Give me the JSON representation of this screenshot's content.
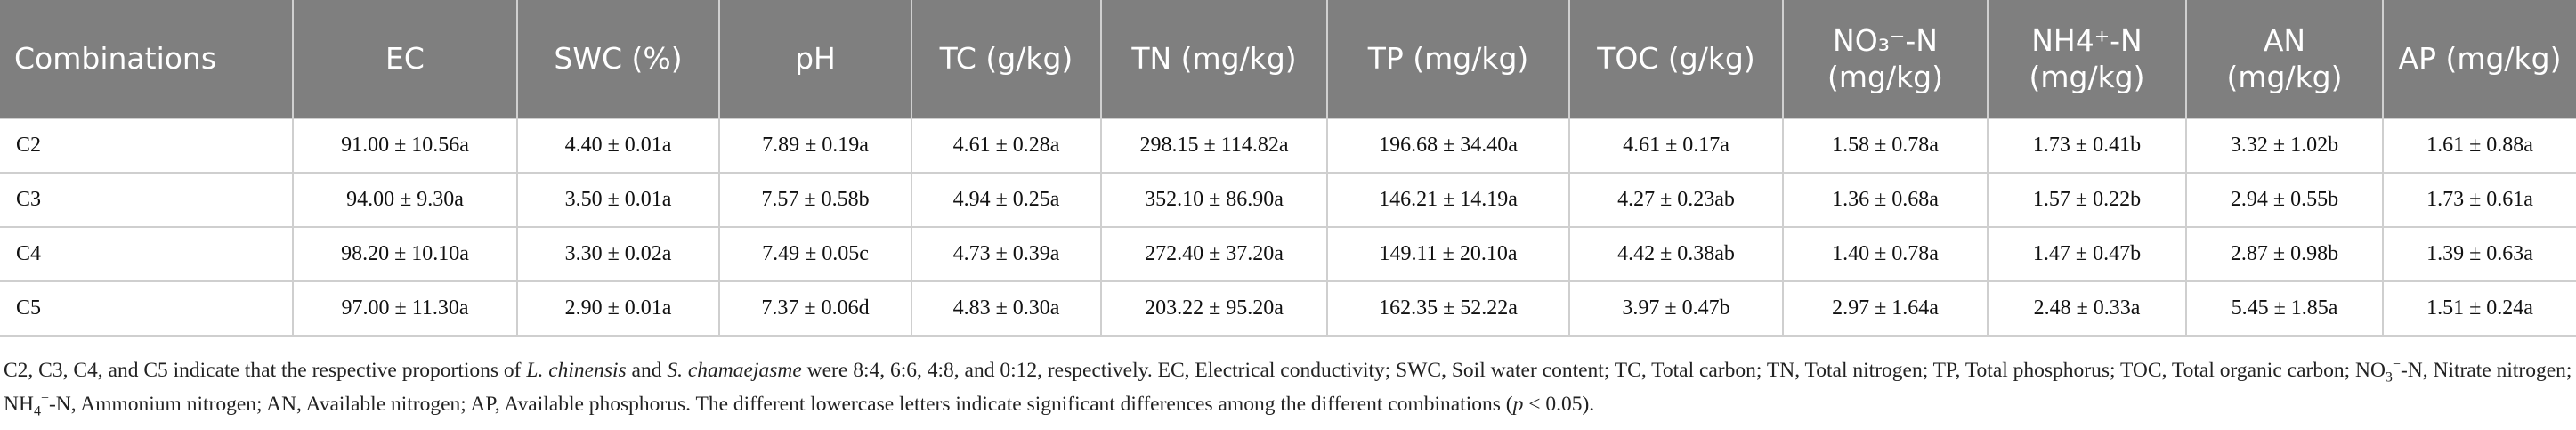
{
  "table": {
    "columns": [
      "Combinations",
      "EC",
      "SWC (%)",
      "pH",
      "TC (g/kg)",
      "TN (mg/kg)",
      "TP (mg/kg)",
      "TOC (g/kg)",
      "NO₃⁻-N (mg/kg)",
      "NH4⁺-N (mg/kg)",
      "AN (mg/kg)",
      "AP (mg/kg)"
    ],
    "rows": [
      [
        "C2",
        "91.00 ± 10.56a",
        "4.40 ± 0.01a",
        "7.89 ± 0.19a",
        "4.61 ± 0.28a",
        "298.15 ± 114.82a",
        "196.68 ± 34.40a",
        "4.61 ± 0.17a",
        "1.58 ± 0.78a",
        "1.73 ± 0.41b",
        "3.32 ± 1.02b",
        "1.61 ± 0.88a"
      ],
      [
        "C3",
        "94.00 ± 9.30a",
        "3.50 ± 0.01a",
        "7.57 ± 0.58b",
        "4.94 ± 0.25a",
        "352.10 ± 86.90a",
        "146.21 ± 14.19a",
        "4.27 ± 0.23ab",
        "1.36 ± 0.68a",
        "1.57 ± 0.22b",
        "2.94 ± 0.55b",
        "1.73 ± 0.61a"
      ],
      [
        "C4",
        "98.20 ± 10.10a",
        "3.30 ± 0.02a",
        "7.49 ± 0.05c",
        "4.73 ± 0.39a",
        "272.40 ± 37.20a",
        "149.11 ± 20.10a",
        "4.42 ± 0.38ab",
        "1.40 ± 0.78a",
        "1.47 ± 0.47b",
        "2.87 ± 0.98b",
        "1.39 ± 0.63a"
      ],
      [
        "C5",
        "97.00 ± 11.30a",
        "2.90 ± 0.01a",
        "7.37 ± 0.06d",
        "4.83 ± 0.30a",
        "203.22 ± 95.20a",
        "162.35 ± 52.22a",
        "3.97 ± 0.47b",
        "2.97 ± 1.64a",
        "2.48 ± 0.33a",
        "5.45 ± 1.85a",
        "1.51 ± 0.24a"
      ]
    ]
  },
  "footnote": [
    "C2, C3, C4, and C5 indicate that the respective proportions of ",
    "L. chinensis",
    " and ",
    "S. chamaejasme",
    " were 8:4, 6:6, 4:8, and 0:12, respectively. EC, Electrical conductivity; SWC, Soil water content; TC, Total carbon; TN, Total nitrogen; TP, Total phosphorus; TOC, Total organic carbon; NO",
    "3",
    "−",
    "-N, Nitrate nitrogen; NH",
    "4",
    "+",
    "-N, Ammonium nitrogen; AN, Available nitrogen; AP, Available phosphorus. The different lowercase letters indicate significant differences among the different combinations (",
    "p",
    " < 0.05)."
  ]
}
